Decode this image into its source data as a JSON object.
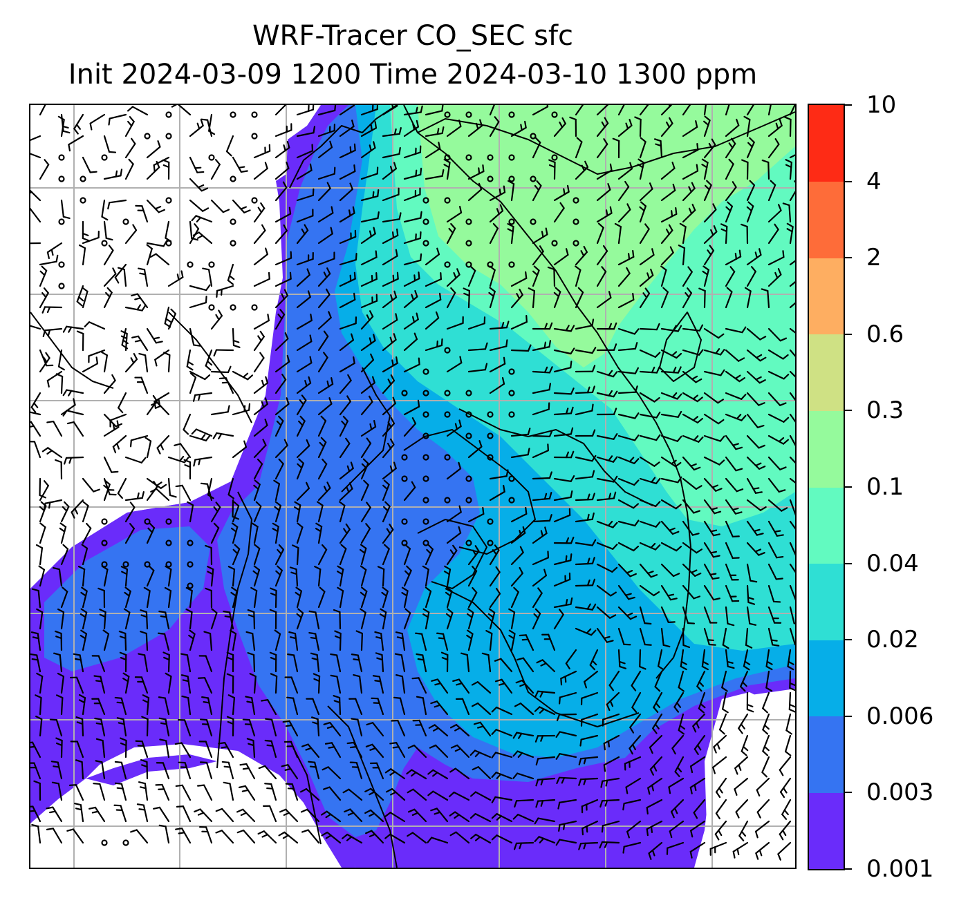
{
  "title": {
    "line1": "WRF-Tracer CO_SEC sfc",
    "line2": "Init 2024-03-09 1200 Time 2024-03-10 1300 ppm"
  },
  "colorbar": {
    "levels": [
      {
        "label": "0.001",
        "color": "#6a2cfa"
      },
      {
        "label": "0.003",
        "color": "#3574f2"
      },
      {
        "label": "0.006",
        "color": "#06aee8"
      },
      {
        "label": "0.02",
        "color": "#2fdfd4"
      },
      {
        "label": "0.04",
        "color": "#62fac0"
      },
      {
        "label": "0.1",
        "color": "#95fa9c"
      },
      {
        "label": "0.3",
        "color": "#cfe184"
      },
      {
        "label": "0.6",
        "color": "#feae61"
      },
      {
        "label": "2",
        "color": "#fe6c39"
      },
      {
        "label": "4",
        "color": "#fe2b15"
      },
      {
        "label": "10",
        "color": null
      }
    ]
  },
  "map": {
    "fill_colors": {
      "below_min": "#ffffff",
      "purple": "#6a2cfa",
      "blue": "#3574f2",
      "cyan": "#06aee8",
      "turquoise": "#2fdfd4",
      "aquamarine": "#62fac0",
      "green": "#95fa9c"
    },
    "gridlines": true,
    "gridline_color": "#b0b0b0",
    "coastline_color": "#000000",
    "wind_barbs": true
  }
}
